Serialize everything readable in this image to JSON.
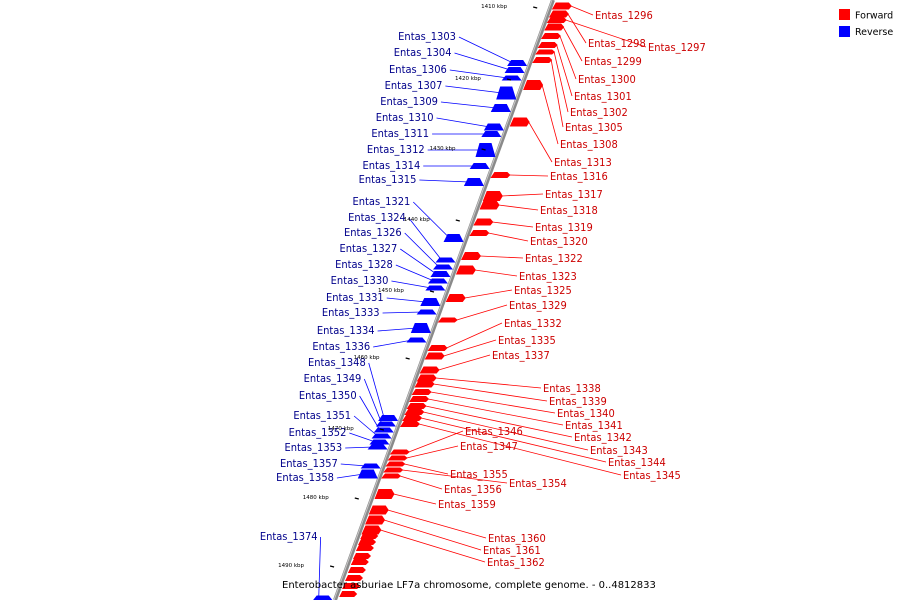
{
  "caption": "Enterobacter asburiae LF7a chromosome, complete genome. - 0..4812833",
  "legend": {
    "forward_label": "Forward",
    "reverse_label": "Reverse",
    "forward_color": "#ff0000",
    "reverse_color": "#0000ff"
  },
  "colors": {
    "forward_label": "#cc0000",
    "reverse_label": "#00008b"
  },
  "ticks": [
    "1410 kbp",
    "1420 kbp",
    "1430 kbp",
    "1440 kbp",
    "1450 kbp",
    "1460 kbp",
    "1470 kbp",
    "1480 kbp",
    "1490 kbp"
  ],
  "reverse_genes": [
    "Entas_1303",
    "Entas_1304",
    "Entas_1306",
    "Entas_1307",
    "Entas_1309",
    "Entas_1310",
    "Entas_1311",
    "Entas_1312",
    "Entas_1314",
    "Entas_1315",
    "Entas_1321",
    "Entas_1324",
    "Entas_1326",
    "Entas_1327",
    "Entas_1328",
    "Entas_1330",
    "Entas_1331",
    "Entas_1333",
    "Entas_1334",
    "Entas_1336",
    "Entas_1348",
    "Entas_1349",
    "Entas_1350",
    "Entas_1351",
    "Entas_1352",
    "Entas_1353",
    "Entas_1357",
    "Entas_1358",
    "Entas_1374"
  ],
  "forward_genes": [
    "Entas_1296",
    "Entas_1298",
    "Entas_1297",
    "Entas_1299",
    "Entas_1300",
    "Entas_1301",
    "Entas_1302",
    "Entas_1305",
    "Entas_1308",
    "Entas_1313",
    "Entas_1316",
    "Entas_1317",
    "Entas_1318",
    "Entas_1319",
    "Entas_1320",
    "Entas_1322",
    "Entas_1323",
    "Entas_1325",
    "Entas_1329",
    "Entas_1332",
    "Entas_1335",
    "Entas_1337",
    "Entas_1338",
    "Entas_1339",
    "Entas_1340",
    "Entas_1341",
    "Entas_1342",
    "Entas_1343",
    "Entas_1344",
    "Entas_1345",
    "Entas_1346",
    "Entas_1347",
    "Entas_1355",
    "Entas_1354",
    "Entas_1356",
    "Entas_1359",
    "Entas_1360",
    "Entas_1361",
    "Entas_1362"
  ]
}
